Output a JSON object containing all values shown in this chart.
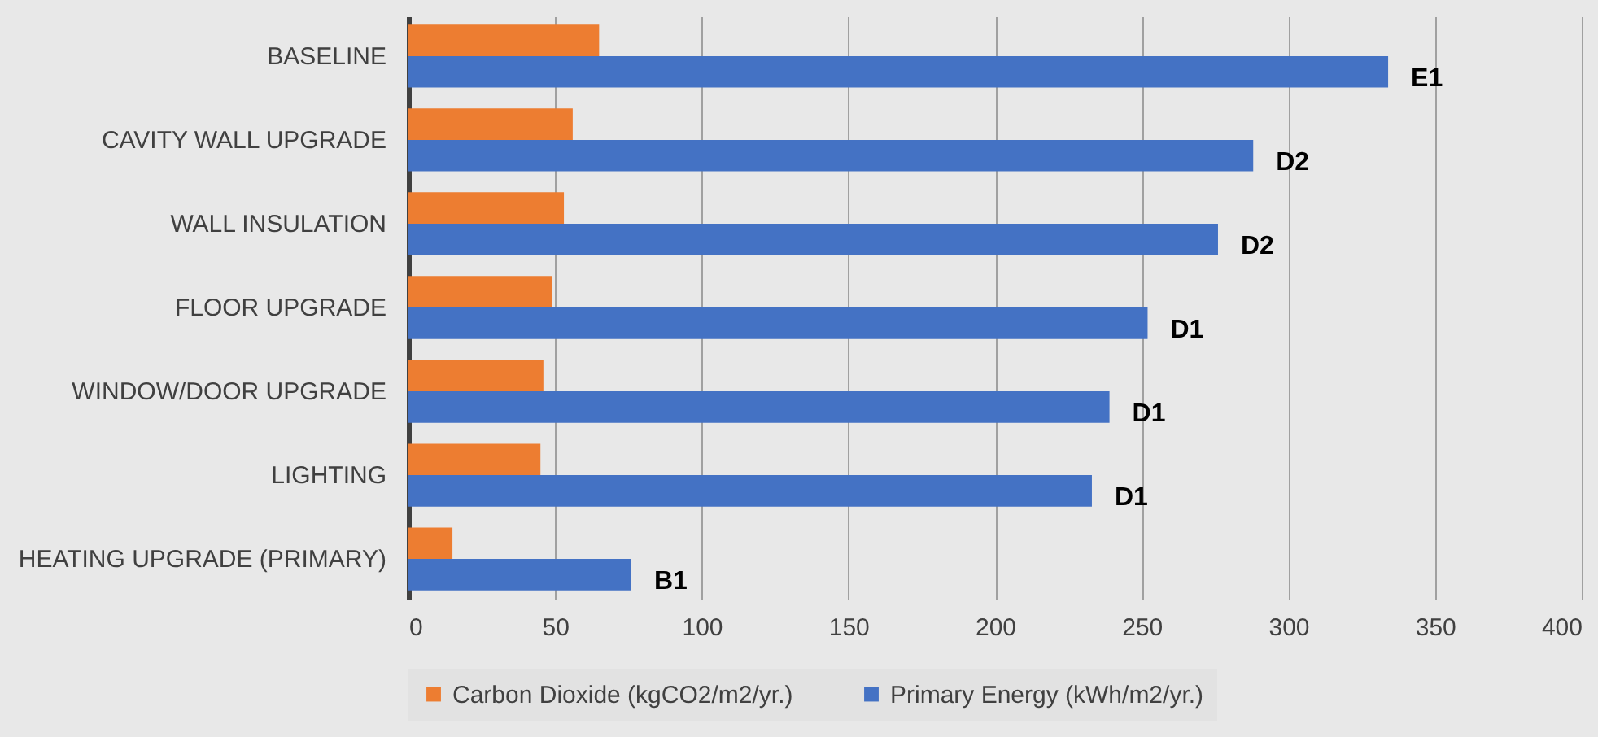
{
  "chart_data": {
    "type": "bar",
    "orientation": "horizontal",
    "categories": [
      "BASELINE",
      "CAVITY WALL UPGRADE",
      "WALL INSULATION",
      "FLOOR UPGRADE",
      "WINDOW/DOOR UPGRADE",
      "LIGHTING",
      "HEATING UPGRADE (PRIMARY)"
    ],
    "series": [
      {
        "name": "Carbon Dioxide (kgCO2/m2/yr.)",
        "color": "#ed7d31",
        "values": [
          65,
          56,
          53,
          49,
          46,
          45,
          15
        ]
      },
      {
        "name": "Primary Energy (kWh/m2/yr.)",
        "color": "#4472c4",
        "values": [
          334,
          288,
          276,
          252,
          239,
          233,
          76
        ],
        "value_labels": [
          "E1",
          "D2",
          "D2",
          "D1",
          "D1",
          "D1",
          "B1"
        ]
      }
    ],
    "xlim": [
      0,
      400
    ],
    "xticks": [
      0,
      50,
      100,
      150,
      200,
      250,
      300,
      350,
      400
    ],
    "grid": "x",
    "legend": "bottom"
  }
}
